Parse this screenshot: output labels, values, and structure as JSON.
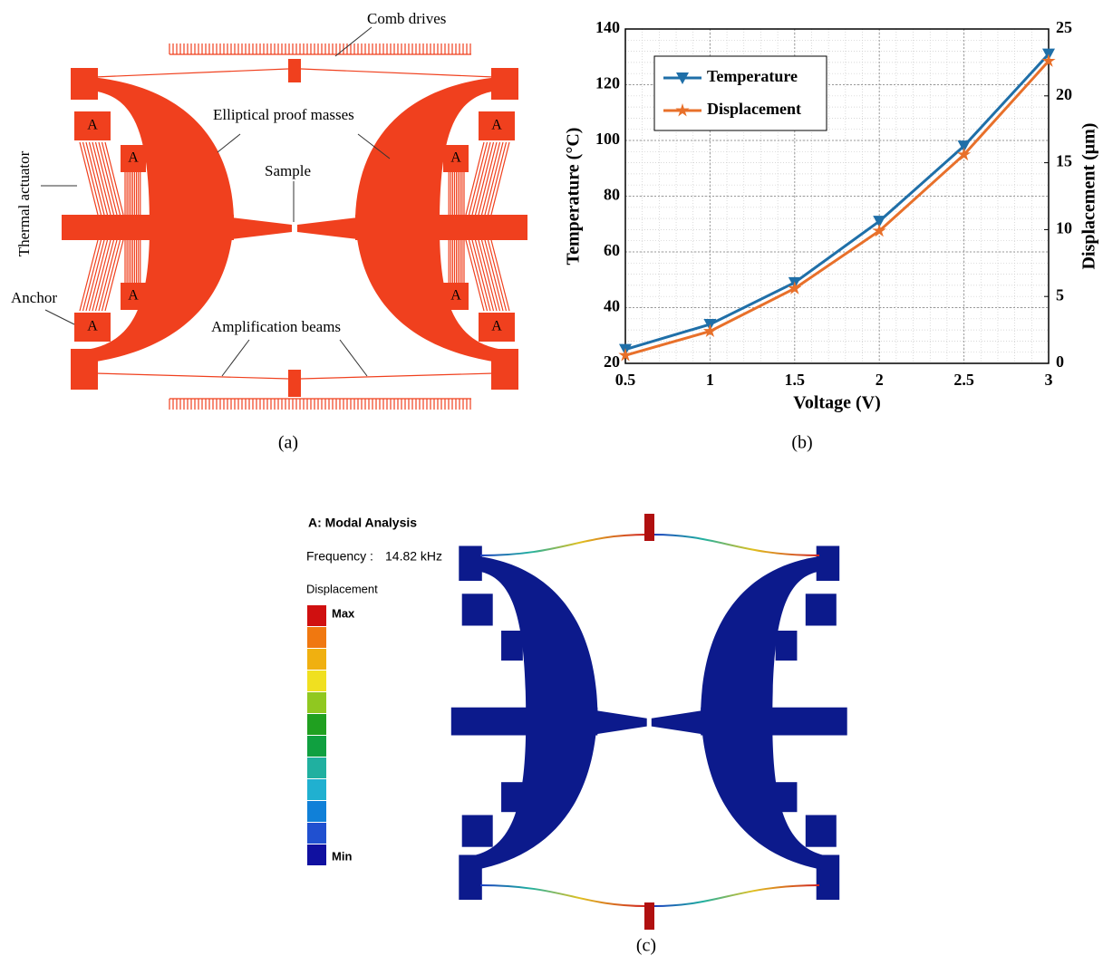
{
  "panel_a": {
    "comb_drives": "Comb drives",
    "proof_masses": "Elliptical proof masses",
    "sample": "Sample",
    "thermal_actuator": "Thermal actuator",
    "anchor": "Anchor",
    "amplification_beams": "Amplification beams",
    "anchor_mark": "A",
    "caption": "(a)"
  },
  "chart_data": {
    "type": "line",
    "xlabel": "Voltage (V)",
    "ylabel": "Temperature (°C)",
    "y2label": "Displacement (μm)",
    "x": [
      0.5,
      1,
      1.5,
      2,
      2.5,
      3
    ],
    "series": [
      {
        "name": "Temperature",
        "color": "#1f6fa8",
        "marker": "triangle-down",
        "values": [
          25,
          34,
          49,
          71,
          98,
          131
        ]
      },
      {
        "name": "Displacement",
        "color": "#e8702a",
        "marker": "star",
        "axis": "y2",
        "values": [
          0.6,
          2.4,
          5.6,
          9.9,
          15.6,
          22.6
        ]
      }
    ],
    "xlim": [
      0.5,
      3
    ],
    "xticks": [
      0.5,
      1,
      1.5,
      2,
      2.5,
      3
    ],
    "ylim": [
      20,
      140
    ],
    "yticks": [
      20,
      40,
      60,
      80,
      100,
      120,
      140
    ],
    "y2lim": [
      0,
      25
    ],
    "y2ticks": [
      0,
      5,
      10,
      15,
      20,
      25
    ],
    "grid": true,
    "legend": "upper left",
    "caption": "(b)"
  },
  "panel_c": {
    "title": "A: Modal Analysis",
    "frequency_label": "Frequency :",
    "frequency": "14.82 kHz",
    "legend_title": "Displacement",
    "max": "Max",
    "min": "Min",
    "caption": "(c)"
  }
}
